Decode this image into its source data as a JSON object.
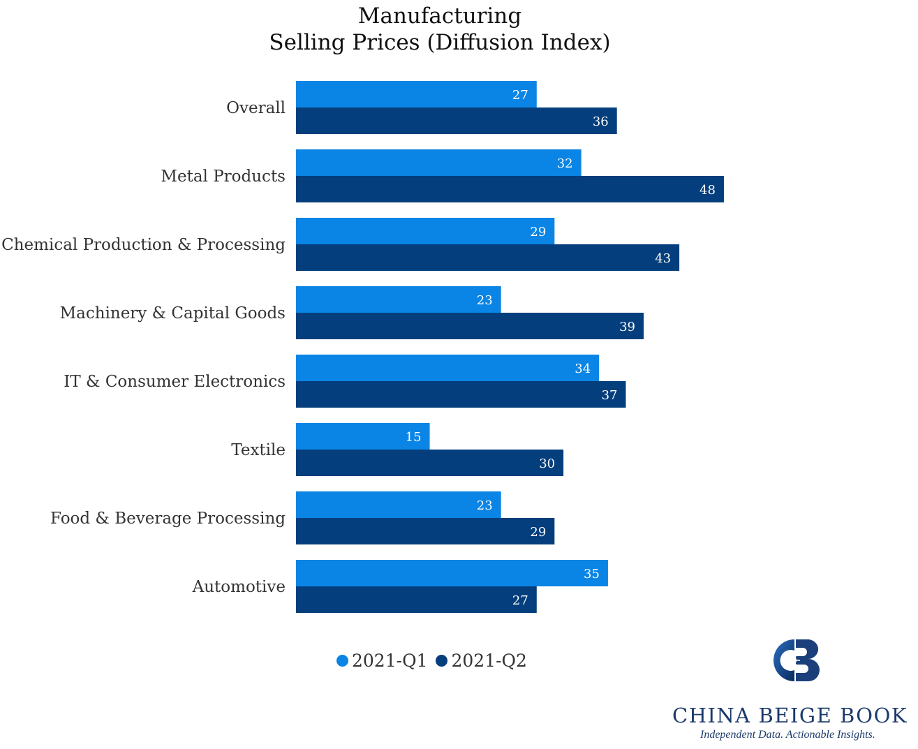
{
  "chart_data": {
    "type": "bar",
    "orientation": "horizontal",
    "title": "Manufacturing",
    "subtitle": "Selling Prices (Diffusion Index)",
    "categories": [
      "Overall",
      "Metal Products",
      "Chemical Production & Processing",
      "Machinery & Capital Goods",
      "IT & Consumer Electronics",
      "Textile",
      "Food & Beverage Processing",
      "Automotive"
    ],
    "series": [
      {
        "name": "2021-Q1",
        "color": "#0a85e5",
        "values": [
          27,
          32,
          29,
          23,
          34,
          15,
          23,
          35
        ]
      },
      {
        "name": "2021-Q2",
        "color": "#053e7c",
        "values": [
          36,
          48,
          43,
          39,
          37,
          30,
          29,
          27
        ]
      }
    ],
    "data_labels": true,
    "gridlines": false,
    "legend_position": "bottom"
  },
  "legend": [
    {
      "label": "2021-Q1",
      "color": "#0a85e5"
    },
    {
      "label": "2021-Q2",
      "color": "#053e7c"
    }
  ],
  "branding": {
    "logo_icon": "china-beige-book-logo-icon",
    "name": "CHINA BEIGE BOOK",
    "tagline": "Independent Data. Actionable Insights."
  }
}
